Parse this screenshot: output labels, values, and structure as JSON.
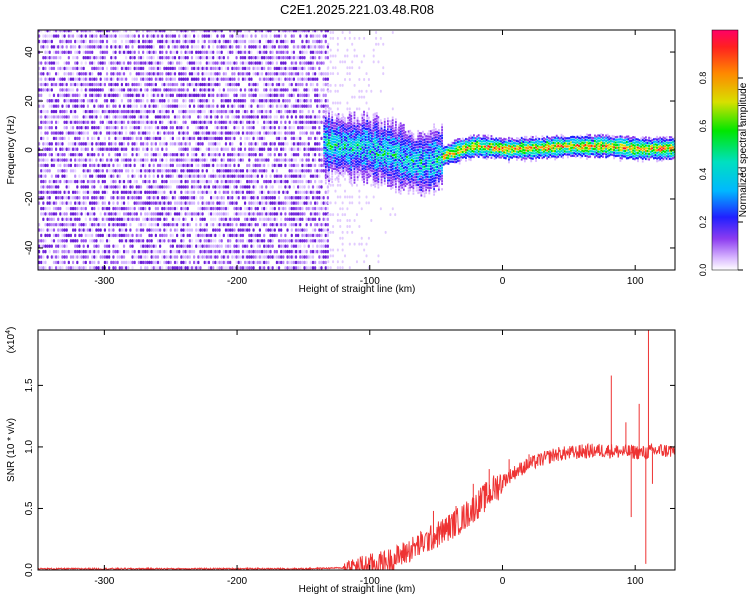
{
  "title": "C2E1.2025.221.03.48.R08",
  "colors": {
    "line": "#ee3333",
    "noise": "#7b2fe0",
    "colorbar_stops": [
      "#ffffff",
      "#d9b8ff",
      "#8c3cf0",
      "#2020ff",
      "#00b8ff",
      "#00e0c0",
      "#00e600",
      "#d8e000",
      "#ff8800",
      "#ff2020",
      "#ff0066"
    ]
  },
  "chart_data": [
    {
      "type": "heatmap",
      "xlabel": "Height of straight line (km)",
      "ylabel": "Frequency (Hz)",
      "xlim": [
        -350,
        130
      ],
      "ylim": [
        -49,
        49
      ],
      "xticks": [
        -300,
        -200,
        -100,
        0,
        100
      ],
      "yticks": [
        -40,
        -20,
        0,
        20,
        40
      ],
      "colorbar": {
        "label": "Normalized spectral amplitude",
        "range": [
          0,
          1
        ],
        "ticks": [
          "0.0",
          "0.2",
          "0.4",
          "0.6",
          "0.8"
        ]
      },
      "regions": [
        {
          "x_range": [
            -350,
            -135
          ],
          "description_value": "broadband noise",
          "amplitude": 0.15
        },
        {
          "x_range": [
            -135,
            -45
          ],
          "center_hz": [
            2,
            -6
          ],
          "amplitude": 0.45
        },
        {
          "x_range": [
            -45,
            130
          ],
          "center_hz": [
            0,
            1
          ],
          "amplitude": 0.9
        }
      ],
      "ridge": {
        "x": [
          -135,
          -120,
          -100,
          -80,
          -70,
          -60,
          -50,
          -40,
          -30,
          -20,
          0,
          20,
          50,
          80,
          100,
          130
        ],
        "y": [
          2,
          1,
          0,
          -3,
          -5,
          -6,
          -4,
          -2,
          0,
          1,
          0,
          0,
          1,
          1,
          0,
          0
        ]
      }
    },
    {
      "type": "line",
      "xlabel": "Height of straight line (km)",
      "ylabel": "SNR (10 * v/v)",
      "scale_label": "(x10",
      "scale_exp": "4",
      "scale_close": ")",
      "xlim": [
        -350,
        130
      ],
      "ylim": [
        0,
        1.95
      ],
      "xticks": [
        -300,
        -200,
        -100,
        0,
        100
      ],
      "yticks": [
        "0.0",
        "0.5",
        "1.0",
        "1.5"
      ],
      "ytick_values": [
        0,
        0.5,
        1.0,
        1.5
      ],
      "series": [
        {
          "x": [
            -350,
            -300,
            -200,
            -150,
            -110,
            -100,
            -90,
            -80,
            -70,
            -60,
            -50,
            -40,
            -30,
            -20,
            -10,
            0,
            10,
            20,
            30,
            40,
            50,
            60,
            70,
            80,
            90,
            100,
            105,
            110,
            115,
            120,
            130
          ],
          "y": [
            0.01,
            0.01,
            0.01,
            0.01,
            0.02,
            0.04,
            0.06,
            0.1,
            0.16,
            0.22,
            0.28,
            0.35,
            0.42,
            0.52,
            0.62,
            0.72,
            0.8,
            0.86,
            0.9,
            0.94,
            0.95,
            0.96,
            0.97,
            0.97,
            0.96,
            0.96,
            0.95,
            0.96,
            0.97,
            0.97,
            0.97
          ],
          "spikes": [
            {
              "x": -52,
              "y": 0.48
            },
            {
              "x": -35,
              "y": 0.52
            },
            {
              "x": -22,
              "y": 0.7
            },
            {
              "x": -10,
              "y": 0.82
            },
            {
              "x": 5,
              "y": 0.9
            },
            {
              "x": 20,
              "y": 0.94
            },
            {
              "x": 60,
              "y": 1.02
            },
            {
              "x": 82,
              "y": 1.58
            },
            {
              "x": 93,
              "y": 1.2
            },
            {
              "x": 97,
              "y": 0.43
            },
            {
              "x": 103,
              "y": 1.35
            },
            {
              "x": 108,
              "y": 0.05
            },
            {
              "x": 110,
              "y": 1.95
            },
            {
              "x": 113,
              "y": 0.7
            }
          ]
        }
      ]
    }
  ]
}
